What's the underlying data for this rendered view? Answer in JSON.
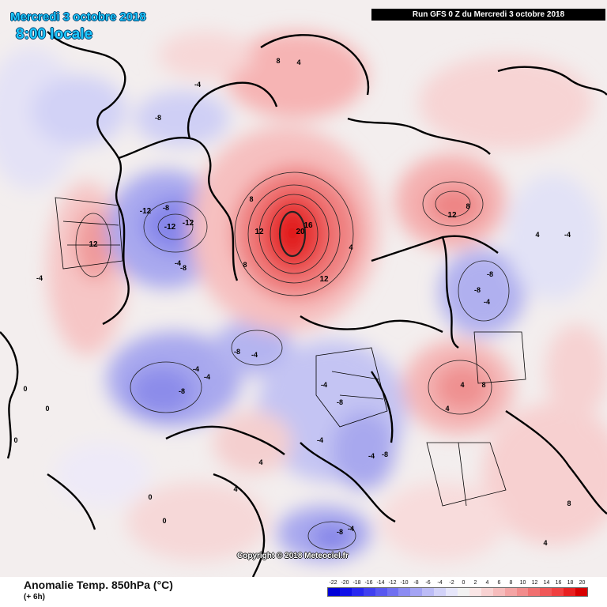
{
  "header": {
    "run_banner": "Run GFS 0 Z du Mercredi 3 octobre 2018",
    "date_title": "Mercredi 3 octobre 2018",
    "time_title": "8:00 locale"
  },
  "footer": {
    "variable_title": "Anomalie Temp. 850hPa (°C)",
    "step_label": "(+ 6h)",
    "copyright": "Copyright © 2018 Meteociel.fr"
  },
  "legend": {
    "ticks": [
      "-22",
      "-20",
      "-18",
      "-16",
      "-14",
      "-12",
      "-10",
      "-8",
      "-6",
      "-4",
      "-2",
      "0",
      "2",
      "4",
      "6",
      "8",
      "10",
      "12",
      "14",
      "16",
      "18",
      "20"
    ],
    "colors": [
      "#0000d8",
      "#1010e8",
      "#2828f0",
      "#4040f0",
      "#5858f0",
      "#7070f0",
      "#8c8cf2",
      "#a4a4f4",
      "#bcbcf6",
      "#d2d2f8",
      "#e6e6fa",
      "#f2f2f2",
      "#fae6e6",
      "#f8d2d2",
      "#f6bcbc",
      "#f4a4a4",
      "#f28c8c",
      "#f07070",
      "#f05858",
      "#f04040",
      "#e82020",
      "#d80000"
    ]
  },
  "map_labels": [
    {
      "text": "20",
      "v": 20
    },
    {
      "text": "16",
      "v": 16
    },
    {
      "text": "12",
      "v": 12
    },
    {
      "text": "12",
      "v": 12
    },
    {
      "text": "8",
      "v": 8
    },
    {
      "text": "8",
      "v": 8
    },
    {
      "text": "4",
      "v": 4
    },
    {
      "text": "4",
      "v": 4
    },
    {
      "text": "12",
      "v": 12
    },
    {
      "text": "8",
      "v": 8
    },
    {
      "text": "12",
      "v": 12
    },
    {
      "text": "8",
      "v": 8
    },
    {
      "text": "-12",
      "v": -12
    },
    {
      "text": "-12",
      "v": -12
    },
    {
      "text": "-12",
      "v": -12
    },
    {
      "text": "-8",
      "v": -8
    },
    {
      "text": "-8",
      "v": -8
    },
    {
      "text": "-4",
      "v": -4
    },
    {
      "text": "-4",
      "v": -4
    },
    {
      "text": "-8",
      "v": -8
    },
    {
      "text": "-4",
      "v": -4
    },
    {
      "text": "-8",
      "v": -8
    },
    {
      "text": "-8",
      "v": -8
    },
    {
      "text": "-4",
      "v": -4
    },
    {
      "text": "-4",
      "v": -4
    },
    {
      "text": "-8",
      "v": -8
    },
    {
      "text": "-4",
      "v": -4
    },
    {
      "text": "-4",
      "v": -4
    },
    {
      "text": "-8",
      "v": -8
    },
    {
      "text": "-8",
      "v": -8
    },
    {
      "text": "-8",
      "v": -8
    },
    {
      "text": "-4",
      "v": -4
    },
    {
      "text": "4",
      "v": 4
    },
    {
      "text": "8",
      "v": 8
    },
    {
      "text": "4",
      "v": 4
    },
    {
      "text": "-4",
      "v": -4
    },
    {
      "text": "-8",
      "v": -8
    },
    {
      "text": "0",
      "v": 0
    },
    {
      "text": "0",
      "v": 0
    },
    {
      "text": "0",
      "v": 0
    },
    {
      "text": "0",
      "v": 0
    },
    {
      "text": "0",
      "v": 0
    },
    {
      "text": "4",
      "v": 4
    },
    {
      "text": "4",
      "v": 4
    },
    {
      "text": "-4",
      "v": -4
    },
    {
      "text": "-4",
      "v": -4
    },
    {
      "text": "4",
      "v": 4
    },
    {
      "text": "8",
      "v": 8
    },
    {
      "text": "4",
      "v": 4
    },
    {
      "text": "-4",
      "v": -4
    }
  ]
}
